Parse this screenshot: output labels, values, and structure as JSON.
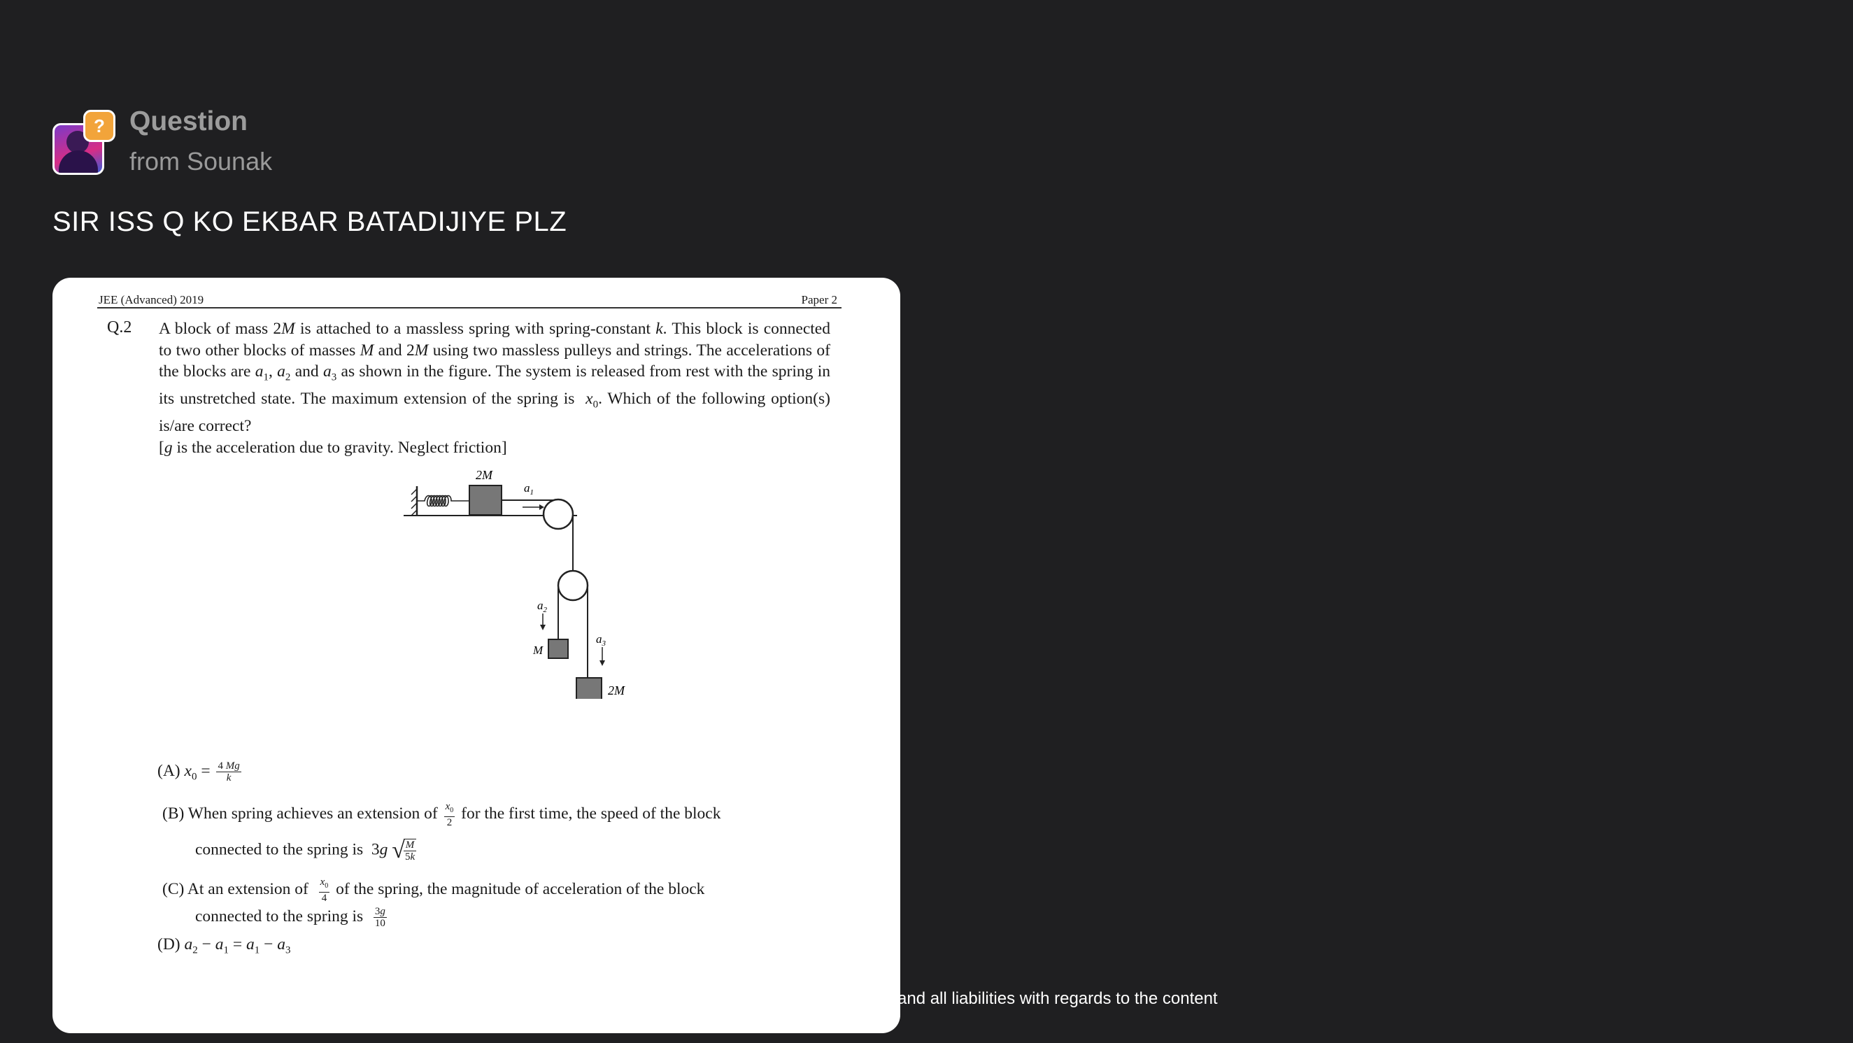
{
  "header": {
    "title": "Question",
    "subtitle": "from Sounak",
    "badge": "?"
  },
  "message": "SIR ISS Q KO EKBAR BATADIJIYE PLZ",
  "disclaimer": "and all liabilities with regards to the content",
  "attachment": {
    "header_left": "JEE (Advanced) 2019",
    "header_right": "Paper 2",
    "question_number": "Q.2",
    "figure_labels": {
      "block_top": "2M",
      "a1": "a",
      "a1_sub": "1",
      "a2": "a",
      "a2_sub": "2",
      "a3": "a",
      "a3_sub": "3",
      "block_left": "M",
      "block_bottom": "2M"
    }
  },
  "colors": {
    "background": "#1f1f21",
    "card": "#ffffff",
    "badge": "#f2a43a",
    "title": "#9c9c9c"
  }
}
